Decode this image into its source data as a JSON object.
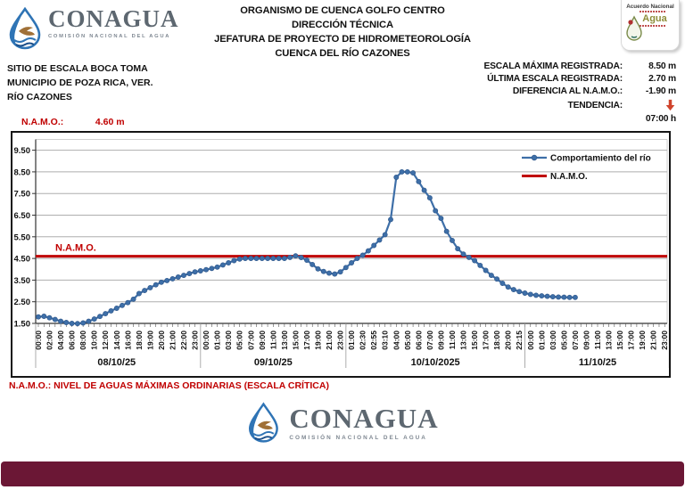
{
  "header": {
    "logo": {
      "brand": "CONAGUA",
      "tagline": "COMISIÓN NACIONAL DEL AGUA"
    },
    "title_lines": [
      "ORGANISMO DE CUENCA GOLFO CENTRO",
      "DIRECCIÓN TÉCNICA",
      "JEFATURA DE PROYECTO DE HIDROMETEOROLOGÍA",
      "CUENCA DEL RÍO CAZONES"
    ],
    "badge": {
      "line1": "Acuerdo Nacional",
      "line2": "Agua"
    }
  },
  "site": {
    "lines": [
      "SITIO DE ESCALA BOCA TOMA",
      "MUNICIPIO DE POZA RICA, VER.",
      "RÍO CAZONES"
    ],
    "namo_label": "N.A.M.O.:",
    "namo_value": "4.60 m"
  },
  "stats": {
    "rows": [
      {
        "label": "ESCALA MÁXIMA REGISTRADA:",
        "value": "8.50 m"
      },
      {
        "label": "ÚLTIMA ESCALA REGISTRADA:",
        "value": "2.70 m"
      },
      {
        "label": "DIFERENCIA AL N.A.M.O.:",
        "value": "-1.90 m"
      },
      {
        "label": "TENDENCIA:",
        "value": ""
      }
    ],
    "trend_icon": "down-arrow",
    "trend_color": "#d0442c",
    "time": "07:00 h"
  },
  "footnote": "N.A.M.O.: NIVEL DE AGUAS MÁXIMAS ORDINARIAS (ESCALA CRÍTICA)",
  "footer": {
    "brand": "CONAGUA",
    "tagline": "COMISIÓN NACIONAL DEL AGUA"
  },
  "colors": {
    "series_blue": "#3e6fa8",
    "namo_red": "#c00000",
    "accent_bar": "#6b1735"
  },
  "chart_data": {
    "type": "line",
    "title": "",
    "xlabel": "",
    "ylabel": "",
    "ylim": [
      1.5,
      10.0
    ],
    "yticks": [
      "1.50",
      "2.50",
      "3.50",
      "4.50",
      "5.50",
      "6.50",
      "7.50",
      "8.50",
      "9.50"
    ],
    "grid": "horizontal-major",
    "legend_position": "top-right-inside",
    "namo_label_in_plot": "N.A.M.O.",
    "series": [
      {
        "name": "Comportamiento del río",
        "color": "#3e6fa8",
        "marker": "circle",
        "x_index_step": 0.5,
        "values": [
          1.8,
          1.83,
          1.76,
          1.68,
          1.6,
          1.54,
          1.5,
          1.49,
          1.52,
          1.6,
          1.7,
          1.82,
          1.95,
          2.08,
          2.2,
          2.33,
          2.46,
          2.62,
          2.88,
          3.02,
          3.15,
          3.28,
          3.4,
          3.48,
          3.56,
          3.64,
          3.72,
          3.8,
          3.88,
          3.93,
          3.98,
          4.04,
          4.1,
          4.2,
          4.3,
          4.4,
          4.47,
          4.5,
          4.5,
          4.5,
          4.5,
          4.5,
          4.5,
          4.5,
          4.5,
          4.55,
          4.62,
          4.54,
          4.42,
          4.22,
          4.02,
          3.9,
          3.82,
          3.78,
          3.88,
          4.08,
          4.3,
          4.5,
          4.65,
          4.85,
          5.1,
          5.35,
          5.6,
          6.3,
          8.25,
          8.5,
          8.5,
          8.45,
          8.05,
          7.65,
          7.3,
          6.7,
          6.35,
          5.75,
          5.33,
          4.95,
          4.7,
          4.55,
          4.4,
          4.18,
          3.95,
          3.72,
          3.55,
          3.35,
          3.18,
          3.06,
          2.97,
          2.9,
          2.84,
          2.8,
          2.77,
          2.75,
          2.73,
          2.72,
          2.71,
          2.7,
          2.7
        ]
      },
      {
        "name": "N.A.M.O.",
        "color": "#c00000",
        "constant": 4.6
      }
    ],
    "x_axis_days": [
      {
        "label": "08/10/25",
        "ticks": [
          "00:00",
          "02:00",
          "04:00",
          "06:00",
          "08:00",
          "10:00",
          "12:00",
          "14:00",
          "16:00",
          "18:00",
          "19:00",
          "20:00",
          "21:00",
          "22:00",
          "23:00"
        ]
      },
      {
        "label": "09/10/25",
        "ticks": [
          "00:00",
          "01:00",
          "03:00",
          "05:00",
          "07:00",
          "09:00",
          "11:00",
          "13:00",
          "15:00",
          "17:00",
          "19:00",
          "21:00",
          "23:00"
        ]
      },
      {
        "label": "10/10/2025",
        "ticks": [
          "01:00",
          "02:30",
          "02:55",
          "03:10",
          "04:00",
          "05:00",
          "06:00",
          "07:00",
          "09:00",
          "11:00",
          "13:00",
          "15:00",
          "17:00",
          "18:00",
          "20:00",
          "22:15"
        ]
      },
      {
        "label": "11/10/25",
        "ticks": [
          "00:00",
          "01:00",
          "03:00",
          "05:00",
          "07:00",
          "09:00",
          "11:00",
          "13:00",
          "15:00",
          "17:00",
          "19:00",
          "21:00",
          "23:00"
        ]
      }
    ]
  }
}
